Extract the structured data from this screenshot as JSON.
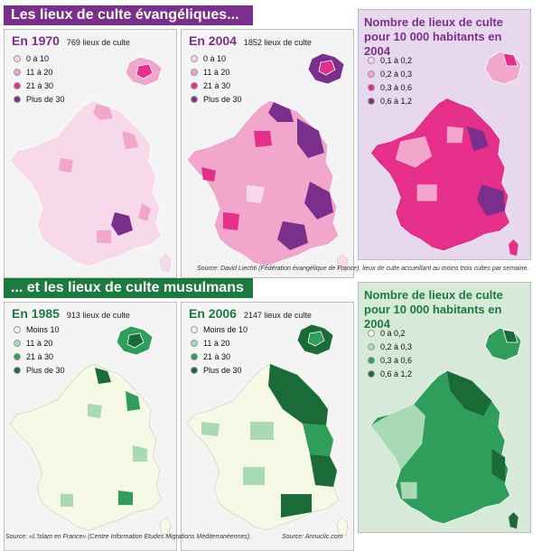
{
  "evangelical": {
    "header": "Les lieux de culte évangéliques...",
    "panel_1970": {
      "year_label": "En 1970",
      "count_label": "769 lieux de culte",
      "legend": [
        {
          "label": "0 à 10",
          "color": "#f8d9ea"
        },
        {
          "label": "11 à 20",
          "color": "#f3a6cb"
        },
        {
          "label": "21 à 30",
          "color": "#e52f8a"
        },
        {
          "label": "Plus de 30",
          "color": "#7b2f8c"
        }
      ]
    },
    "panel_2004": {
      "year_label": "En 2004",
      "count_label": "1852 lieux de culte",
      "legend": [
        {
          "label": "0 à 10",
          "color": "#f8d9ea"
        },
        {
          "label": "11 à 20",
          "color": "#f3a6cb"
        },
        {
          "label": "21 à 30",
          "color": "#e52f8a"
        },
        {
          "label": "Plus de 30",
          "color": "#7b2f8c"
        }
      ]
    },
    "panel_density": {
      "title": "Nombre de lieux de culte pour 10 000 habitants en 2004",
      "legend": [
        {
          "label": "0,1 à 0,2",
          "color": "#f8d9ea"
        },
        {
          "label": "0,2 à 0,3",
          "color": "#f3a6cb"
        },
        {
          "label": "0,3 à 0,6",
          "color": "#e52f8a"
        },
        {
          "label": "0,6 à 1,2",
          "color": "#7b2f8c"
        }
      ]
    },
    "source": "Source: David Liechti (Fédération évangélique de France), lieux de culte accueillant au moins trois cultes par semaine."
  },
  "muslim": {
    "header": "... et les lieux de culte musulmans",
    "panel_1985": {
      "year_label": "En 1985",
      "count_label": "913 lieux de culte",
      "legend": [
        {
          "label": "Moins 10",
          "color": "#f6f9e6"
        },
        {
          "label": "11 à 20",
          "color": "#a9d9b5"
        },
        {
          "label": "21 à 30",
          "color": "#2f9e5a"
        },
        {
          "label": "Plus de 30",
          "color": "#1b6b39"
        }
      ]
    },
    "panel_2006": {
      "year_label": "En 2006",
      "count_label": "2147 lieux de culte",
      "legend": [
        {
          "label": "Moins de 10",
          "color": "#f6f9e6"
        },
        {
          "label": "11 à 20",
          "color": "#a9d9b5"
        },
        {
          "label": "21 à 30",
          "color": "#2f9e5a"
        },
        {
          "label": "Plus de 30",
          "color": "#1b6b39"
        }
      ]
    },
    "panel_density": {
      "title": "Nombre de lieux de culte pour 10 000 habitants en 2004",
      "legend": [
        {
          "label": "0 à 0,2",
          "color": "#f6f9e6"
        },
        {
          "label": "0,2 à 0,3",
          "color": "#a9d9b5"
        },
        {
          "label": "0,3 à 0,6",
          "color": "#2f9e5a"
        },
        {
          "label": "0,6 à 1,2",
          "color": "#1b6b39"
        }
      ]
    },
    "source_left": "Source: «L'Islam en France» (Centre Information Etudes Migrations Méditerranéennes).",
    "source_right": "Source: Annuclic.com"
  }
}
